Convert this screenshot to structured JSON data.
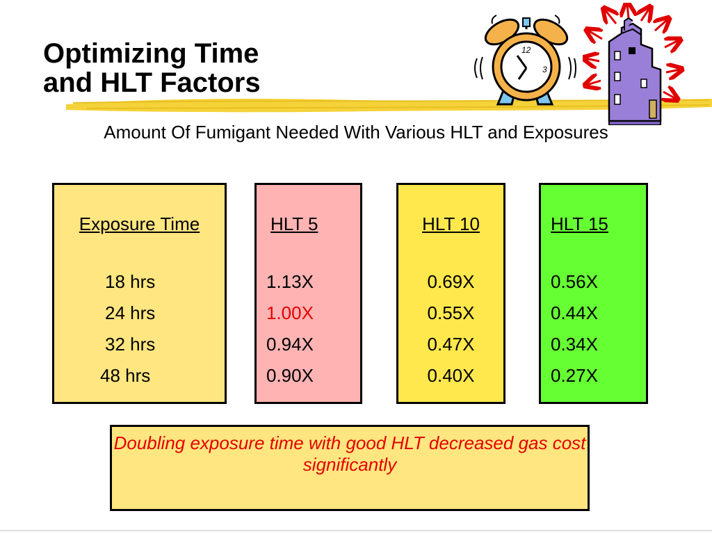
{
  "slide": {
    "title_line1": "Optimizing Time",
    "title_line2": "and HLT Factors",
    "subtitle": "Amount Of Fumigant Needed With Various HLT and Exposures"
  },
  "columns": [
    {
      "header": "Exposure Time",
      "values": [
        "18 hrs",
        "24 hrs",
        "32 hrs",
        "48 hrs"
      ],
      "background": "#ffe680"
    },
    {
      "header": "HLT 5",
      "values": [
        "1.13X",
        "1.00X",
        "0.94X",
        "0.90X"
      ],
      "background": "#ffb3b3",
      "highlight_color": "#e60000"
    },
    {
      "header": "HLT 10",
      "values": [
        "0.69X",
        "0.55X",
        "0.47X",
        "0.40X"
      ],
      "background": "#ffe84d"
    },
    {
      "header": "HLT 15",
      "values": [
        "0.56X",
        "0.44X",
        "0.34X",
        "0.27X"
      ],
      "background": "#66ff33"
    }
  ],
  "callout": {
    "text": "Doubling exposure time with good HLT decreased gas cost significantly",
    "text_color": "#e60000",
    "background": "#ffe680"
  },
  "icons": [
    "alarm-clock-icon",
    "grain-elevator-icon"
  ]
}
